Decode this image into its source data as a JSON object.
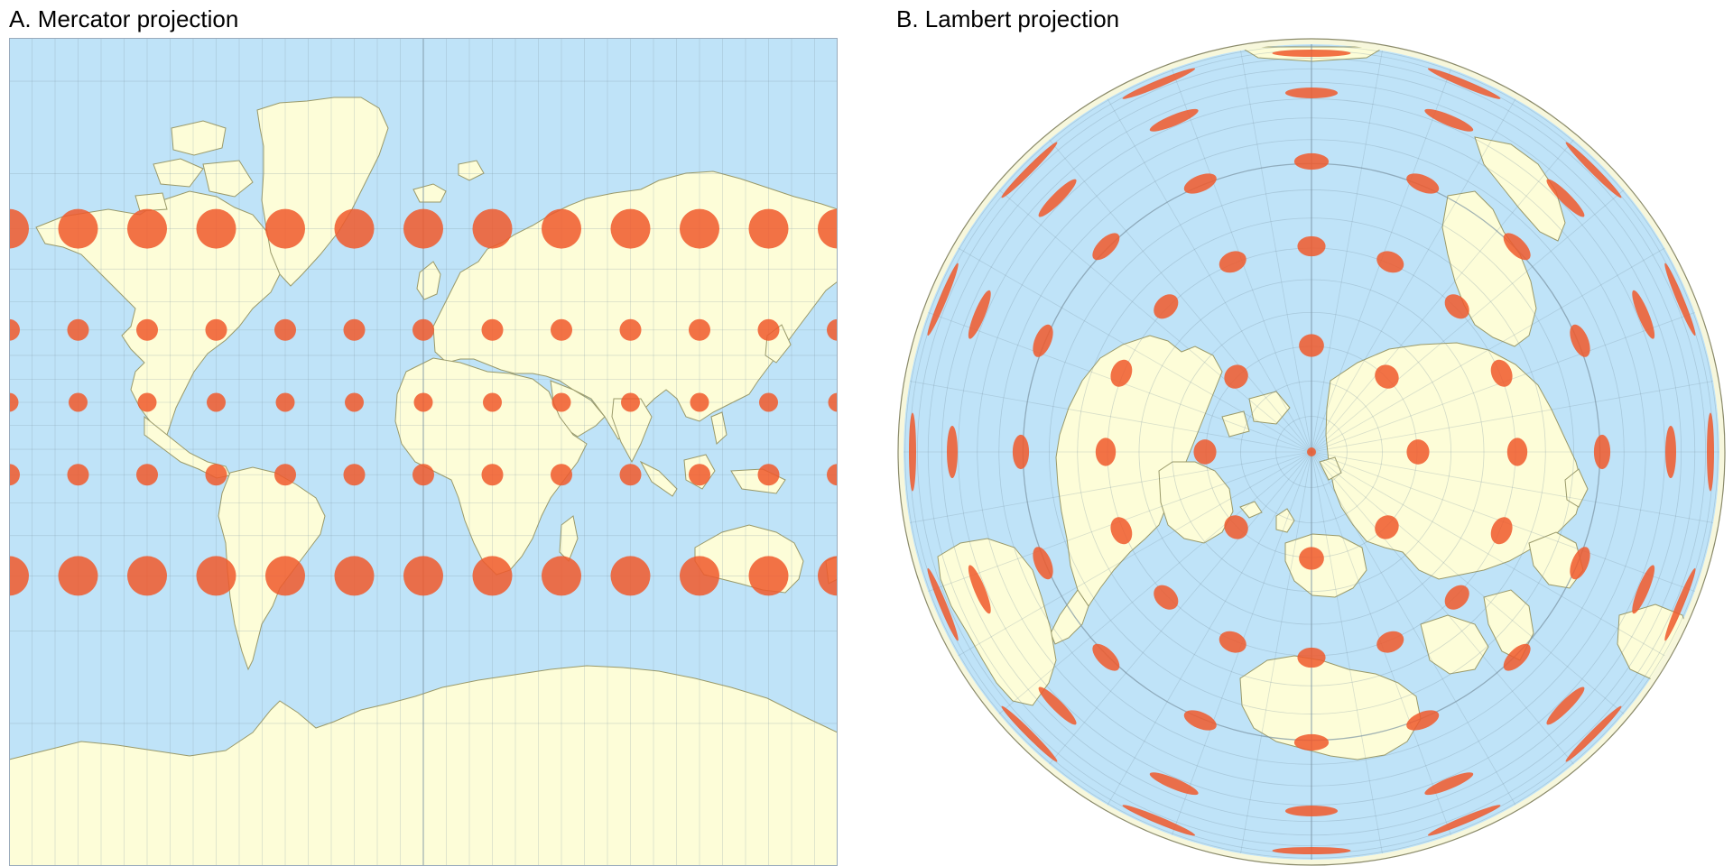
{
  "panels": {
    "a_title": "A. Mercator projection",
    "b_title": "B. Lambert projection"
  },
  "colors": {
    "ocean": "#bfe3f8",
    "land": "#fdfdd8",
    "coast": "#9a9a6a",
    "graticule": "#7a93a3",
    "indicatrix": "#f0592c",
    "border": "#8a8a6a"
  },
  "indicatrix_latitudes": [
    60,
    30,
    0,
    -30,
    -60
  ],
  "indicatrix_longitudes_mercator": [
    -180,
    -150,
    -120,
    -90,
    -60,
    -30,
    0,
    30,
    60,
    90,
    120,
    150,
    180
  ]
}
